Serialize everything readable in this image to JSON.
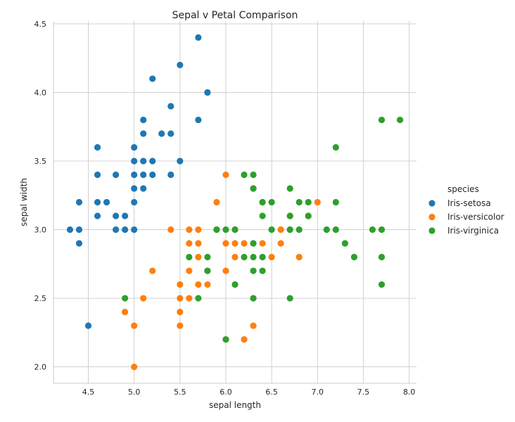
{
  "chart_data": {
    "type": "scatter",
    "title": "Sepal v Petal Comparison",
    "xlabel": "sepal length",
    "ylabel": "sepal width",
    "xlim": [
      4.12,
      8.08
    ],
    "ylim": [
      1.88,
      4.52
    ],
    "xticks": [
      4.5,
      5.0,
      5.5,
      6.0,
      6.5,
      7.0,
      7.5,
      8.0
    ],
    "xtick_labels": [
      "4.5",
      "5.0",
      "5.5",
      "6.0",
      "6.5",
      "7.0",
      "7.5",
      "8.0"
    ],
    "yticks": [
      2.0,
      2.5,
      3.0,
      3.5,
      4.0,
      4.5
    ],
    "ytick_labels": [
      "2.0",
      "2.5",
      "3.0",
      "3.5",
      "4.0",
      "4.5"
    ],
    "grid": true,
    "legend": {
      "title": "species",
      "placement": "right"
    },
    "series": [
      {
        "name": "Iris-setosa",
        "color": "#1f77b4",
        "points": [
          [
            4.3,
            3.0
          ],
          [
            4.4,
            2.9
          ],
          [
            4.4,
            3.0
          ],
          [
            4.4,
            3.2
          ],
          [
            4.5,
            2.3
          ],
          [
            4.6,
            3.1
          ],
          [
            4.6,
            3.2
          ],
          [
            4.6,
            3.4
          ],
          [
            4.6,
            3.6
          ],
          [
            4.7,
            3.2
          ],
          [
            4.8,
            3.0
          ],
          [
            4.8,
            3.1
          ],
          [
            4.8,
            3.4
          ],
          [
            4.9,
            3.0
          ],
          [
            4.9,
            3.1
          ],
          [
            5.0,
            3.0
          ],
          [
            5.0,
            3.2
          ],
          [
            5.0,
            3.3
          ],
          [
            5.0,
            3.4
          ],
          [
            5.0,
            3.5
          ],
          [
            5.0,
            3.6
          ],
          [
            5.1,
            3.3
          ],
          [
            5.1,
            3.4
          ],
          [
            5.1,
            3.5
          ],
          [
            5.1,
            3.7
          ],
          [
            5.1,
            3.8
          ],
          [
            5.2,
            3.4
          ],
          [
            5.2,
            3.5
          ],
          [
            5.2,
            4.1
          ],
          [
            5.3,
            3.7
          ],
          [
            5.4,
            3.4
          ],
          [
            5.4,
            3.7
          ],
          [
            5.4,
            3.9
          ],
          [
            5.5,
            3.5
          ],
          [
            5.5,
            4.2
          ],
          [
            5.7,
            3.8
          ],
          [
            5.7,
            4.4
          ],
          [
            5.8,
            4.0
          ]
        ]
      },
      {
        "name": "Iris-versicolor",
        "color": "#ff7f0e",
        "points": [
          [
            4.9,
            2.4
          ],
          [
            5.0,
            2.0
          ],
          [
            5.0,
            2.3
          ],
          [
            5.1,
            2.5
          ],
          [
            5.2,
            2.7
          ],
          [
            5.4,
            3.0
          ],
          [
            5.5,
            2.3
          ],
          [
            5.5,
            2.4
          ],
          [
            5.5,
            2.5
          ],
          [
            5.5,
            2.6
          ],
          [
            5.6,
            2.5
          ],
          [
            5.6,
            2.7
          ],
          [
            5.6,
            2.9
          ],
          [
            5.6,
            3.0
          ],
          [
            5.7,
            2.6
          ],
          [
            5.7,
            2.8
          ],
          [
            5.7,
            2.9
          ],
          [
            5.7,
            3.0
          ],
          [
            5.8,
            2.6
          ],
          [
            5.8,
            2.7
          ],
          [
            5.9,
            3.0
          ],
          [
            5.9,
            3.2
          ],
          [
            6.0,
            2.2
          ],
          [
            6.0,
            2.7
          ],
          [
            6.0,
            2.9
          ],
          [
            6.0,
            3.4
          ],
          [
            6.1,
            2.8
          ],
          [
            6.1,
            2.9
          ],
          [
            6.1,
            3.0
          ],
          [
            6.2,
            2.2
          ],
          [
            6.2,
            2.9
          ],
          [
            6.3,
            2.3
          ],
          [
            6.3,
            2.5
          ],
          [
            6.3,
            3.3
          ],
          [
            6.4,
            2.9
          ],
          [
            6.4,
            3.2
          ],
          [
            6.5,
            2.8
          ],
          [
            6.6,
            2.9
          ],
          [
            6.6,
            3.0
          ],
          [
            6.7,
            3.0
          ],
          [
            6.7,
            3.1
          ],
          [
            6.8,
            2.8
          ],
          [
            6.9,
            3.1
          ],
          [
            7.0,
            3.2
          ]
        ]
      },
      {
        "name": "Iris-virginica",
        "color": "#2ca02c",
        "points": [
          [
            4.9,
            2.5
          ],
          [
            5.6,
            2.8
          ],
          [
            5.7,
            2.5
          ],
          [
            5.8,
            2.7
          ],
          [
            5.8,
            2.8
          ],
          [
            5.9,
            3.0
          ],
          [
            6.0,
            2.2
          ],
          [
            6.0,
            3.0
          ],
          [
            6.1,
            2.6
          ],
          [
            6.1,
            3.0
          ],
          [
            6.2,
            2.8
          ],
          [
            6.2,
            3.4
          ],
          [
            6.3,
            2.5
          ],
          [
            6.3,
            2.7
          ],
          [
            6.3,
            2.8
          ],
          [
            6.3,
            2.9
          ],
          [
            6.3,
            3.3
          ],
          [
            6.3,
            3.4
          ],
          [
            6.4,
            2.7
          ],
          [
            6.4,
            2.8
          ],
          [
            6.4,
            3.1
          ],
          [
            6.4,
            3.2
          ],
          [
            6.5,
            3.0
          ],
          [
            6.5,
            3.2
          ],
          [
            6.7,
            2.5
          ],
          [
            6.7,
            3.0
          ],
          [
            6.7,
            3.1
          ],
          [
            6.7,
            3.3
          ],
          [
            6.8,
            3.0
          ],
          [
            6.8,
            3.2
          ],
          [
            6.9,
            3.1
          ],
          [
            6.9,
            3.2
          ],
          [
            7.1,
            3.0
          ],
          [
            7.2,
            3.0
          ],
          [
            7.2,
            3.2
          ],
          [
            7.2,
            3.6
          ],
          [
            7.3,
            2.9
          ],
          [
            7.4,
            2.8
          ],
          [
            7.6,
            3.0
          ],
          [
            7.7,
            2.6
          ],
          [
            7.7,
            2.8
          ],
          [
            7.7,
            3.0
          ],
          [
            7.7,
            3.8
          ],
          [
            7.9,
            3.8
          ]
        ]
      }
    ]
  }
}
